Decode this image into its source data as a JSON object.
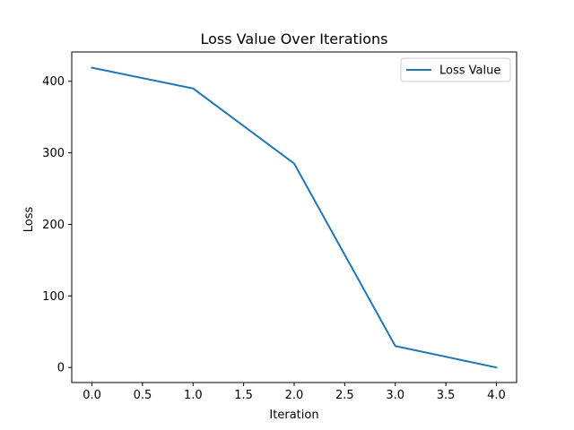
{
  "chart_data": {
    "type": "line",
    "title": "Loss Value Over Iterations",
    "xlabel": "Iteration",
    "ylabel": "Loss",
    "xlim": [
      -0.2,
      4.2
    ],
    "ylim": [
      -21,
      441
    ],
    "xticks": [
      0.0,
      0.5,
      1.0,
      1.5,
      2.0,
      2.5,
      3.0,
      3.5,
      4.0
    ],
    "xtick_labels": [
      "0.0",
      "0.5",
      "1.0",
      "1.5",
      "2.0",
      "2.5",
      "3.0",
      "3.5",
      "4.0"
    ],
    "yticks": [
      0,
      100,
      200,
      300,
      400
    ],
    "ytick_labels": [
      "0",
      "100",
      "200",
      "300",
      "400"
    ],
    "grid": false,
    "legend_position": "top-right",
    "series": [
      {
        "name": "Loss Value",
        "color": "#1f77b4",
        "x": [
          0,
          1,
          2,
          3,
          4
        ],
        "y": [
          419,
          390,
          285,
          30,
          0
        ]
      }
    ]
  }
}
